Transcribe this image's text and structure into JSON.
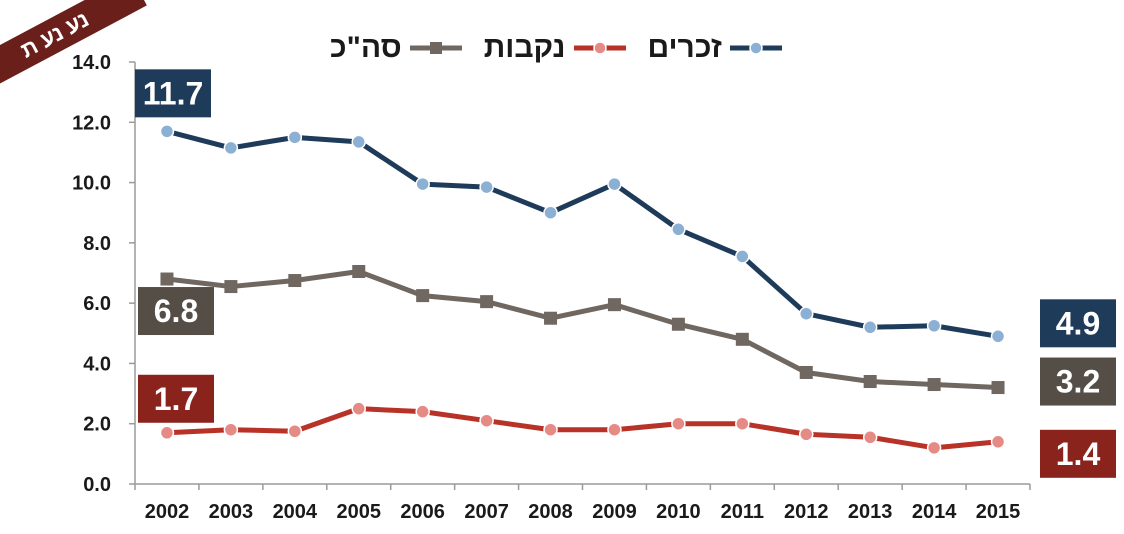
{
  "corner_badge": "נע נע ת",
  "chart_data": {
    "type": "line",
    "categories": [
      "2002",
      "2003",
      "2004",
      "2005",
      "2006",
      "2007",
      "2008",
      "2009",
      "2010",
      "2011",
      "2012",
      "2013",
      "2014",
      "2015"
    ],
    "ylim": [
      0,
      14
    ],
    "yticks": [
      0,
      2,
      4,
      6,
      8,
      10,
      12,
      14
    ],
    "ytick_labels": [
      "0.0",
      "2.0",
      "4.0",
      "6.0",
      "8.0",
      "10.0",
      "12.0",
      "14.0"
    ],
    "grid": false,
    "legend_position": "top",
    "series": [
      {
        "name": "זכרים",
        "color": "#1f3b5a",
        "marker": "circle",
        "values": [
          11.7,
          11.15,
          11.5,
          11.35,
          9.95,
          9.85,
          9.0,
          9.95,
          8.45,
          7.55,
          5.65,
          5.2,
          5.25,
          4.9
        ],
        "start_label": "11.7",
        "end_label": "4.9"
      },
      {
        "name": "נקבות",
        "color": "#b83228",
        "marker": "circle",
        "values": [
          1.7,
          1.8,
          1.75,
          2.5,
          2.4,
          2.1,
          1.8,
          1.8,
          2.0,
          2.0,
          1.65,
          1.55,
          1.2,
          1.4
        ],
        "start_label": "1.7",
        "end_label": "1.4"
      },
      {
        "name": "סה\"כ",
        "color": "#6f6760",
        "marker": "square",
        "values": [
          6.8,
          6.55,
          6.75,
          7.05,
          6.25,
          6.05,
          5.5,
          5.95,
          5.3,
          4.8,
          3.7,
          3.4,
          3.3,
          3.2
        ],
        "start_label": "6.8",
        "end_label": "3.2"
      }
    ],
    "label_box_colors": [
      "#1f3b5a",
      "#8a231c",
      "#554e47"
    ]
  }
}
